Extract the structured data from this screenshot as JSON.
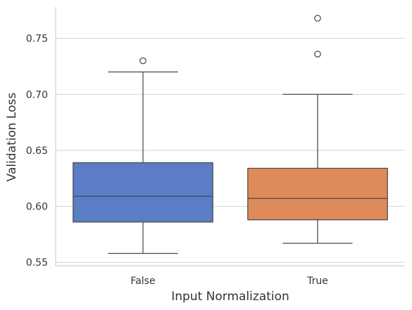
{
  "chart_data": {
    "type": "boxplot",
    "title": "",
    "xlabel": "Input Normalization",
    "ylabel": "Validation Loss",
    "ylim": [
      0.547,
      0.778
    ],
    "yticks": [
      0.55,
      0.6,
      0.65,
      0.7,
      0.75
    ],
    "ytick_labels": [
      "0.55",
      "0.60",
      "0.65",
      "0.70",
      "0.75"
    ],
    "categories": [
      "False",
      "True"
    ],
    "boxes": [
      {
        "label": "False",
        "color": "#5a7dc6",
        "whisker_low": 0.558,
        "q1": 0.586,
        "median": 0.609,
        "q3": 0.639,
        "whisker_high": 0.72,
        "outliers": [
          0.73
        ]
      },
      {
        "label": "True",
        "color": "#de8a59",
        "whisker_low": 0.567,
        "q1": 0.588,
        "median": 0.607,
        "q3": 0.634,
        "whisker_high": 0.7,
        "outliers": [
          0.736,
          0.768
        ]
      }
    ],
    "grid": "horizontal",
    "legend": "none"
  },
  "style": {
    "grid_color": "#d3d3d3",
    "axis_color": "#cfcfcf",
    "line_color": "#4a4a4a"
  }
}
